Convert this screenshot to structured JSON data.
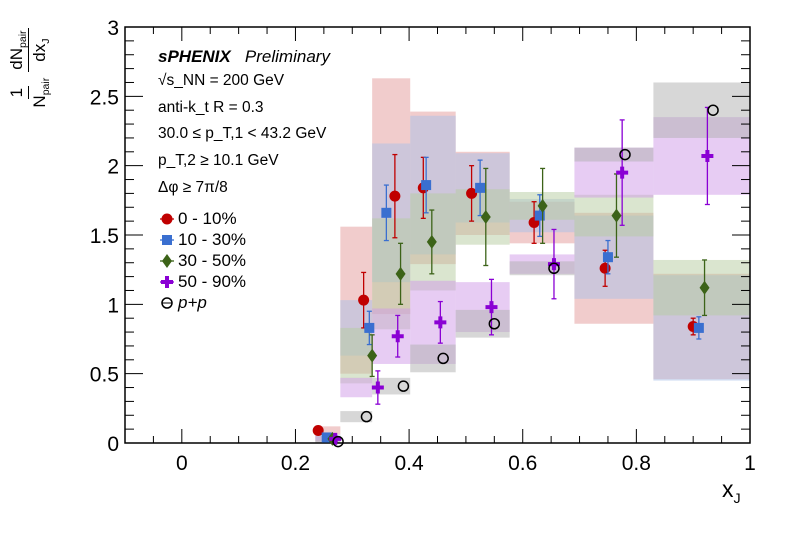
{
  "chart_data": {
    "type": "scatter",
    "title": "",
    "xlabel": "x_J",
    "ylabel": "1/N_pair dN_pair/dx_J",
    "xlim": [
      -0.1,
      1.0
    ],
    "ylim": [
      0,
      3
    ],
    "xticks": [
      "0",
      "0.2",
      "0.4",
      "0.6",
      "0.8",
      "1"
    ],
    "yticks": [
      "0",
      "0.5",
      "1",
      "1.5",
      "2",
      "2.5",
      "3"
    ],
    "grid": false,
    "legend_placement": "top-left",
    "bin_edges": [
      0.235,
      0.279,
      0.335,
      0.402,
      0.482,
      0.577,
      0.691,
      0.83,
      1.0
    ],
    "annotations": {
      "experiment": "sPHENIX",
      "status": "Preliminary",
      "energy": "√s_NN = 200 GeV",
      "jet": "anti-k_t  R = 0.3",
      "pt1": "30.0 ≤ p_T,1 < 43.2 GeV",
      "pt2": "p_T,2 ≥ 10.1 GeV",
      "dphi": "Δφ ≥ 7π/8"
    },
    "series": [
      {
        "name": "0 - 10%",
        "marker": "circle",
        "color": "#c00000",
        "box_color": "#e39a9a",
        "x": [
          0.24,
          0.32,
          0.375,
          0.425,
          0.51,
          0.62,
          0.745,
          0.9
        ],
        "y": [
          0.09,
          1.03,
          1.78,
          1.84,
          1.8,
          1.59,
          1.26,
          0.84
        ],
        "stat": [
          0.03,
          0.2,
          0.3,
          0.22,
          0.2,
          0.15,
          0.13,
          0.06
        ],
        "sys": [
          0.03,
          0.53,
          0.85,
          0.55,
          0.3,
          0.15,
          0.4,
          0.38
        ]
      },
      {
        "name": "10 - 30%",
        "marker": "square",
        "color": "#3a6fd0",
        "box_color": "#a9bfe8",
        "x": [
          0.255,
          0.33,
          0.36,
          0.43,
          0.525,
          0.63,
          0.75,
          0.91
        ],
        "y": [
          0.04,
          0.83,
          1.66,
          1.86,
          1.84,
          1.64,
          1.34,
          0.83
        ],
        "stat": [
          0.02,
          0.12,
          0.2,
          0.2,
          0.2,
          0.15,
          0.12,
          0.08
        ],
        "sys": [
          0.02,
          0.2,
          0.5,
          0.5,
          0.25,
          0.12,
          0.3,
          0.38
        ]
      },
      {
        "name": "30 - 50%",
        "marker": "diamond",
        "color": "#3c6318",
        "box_color": "#b6cba0",
        "x": [
          0.265,
          0.335,
          0.385,
          0.44,
          0.535,
          0.635,
          0.765,
          0.92
        ],
        "y": [
          0.03,
          0.63,
          1.22,
          1.45,
          1.63,
          1.71,
          1.64,
          1.12
        ],
        "stat": [
          0.02,
          0.15,
          0.22,
          0.23,
          0.35,
          0.27,
          0.3,
          0.2
        ],
        "sys": [
          0.02,
          0.2,
          0.4,
          0.35,
          0.2,
          0.1,
          0.15,
          0.2
        ]
      },
      {
        "name": "50 - 90%",
        "marker": "cross",
        "color": "#8a00d4",
        "box_color": "#cf9ae8",
        "x": [
          0.27,
          0.345,
          0.38,
          0.455,
          0.545,
          0.655,
          0.775,
          0.925
        ],
        "y": [
          0.03,
          0.4,
          0.77,
          0.87,
          0.98,
          1.29,
          1.95,
          2.07
        ],
        "stat": [
          0.02,
          0.12,
          0.15,
          0.15,
          0.2,
          0.25,
          0.38,
          0.35
        ],
        "sys": [
          0.02,
          0.07,
          0.2,
          0.3,
          0.18,
          0.07,
          0.18,
          0.28
        ]
      },
      {
        "name": "p+p",
        "marker": "open-circle",
        "color": "#000000",
        "box_color": "#b0b0b0",
        "x": [
          0.275,
          0.325,
          0.39,
          0.46,
          0.55,
          0.655,
          0.78,
          0.935
        ],
        "y": [
          0.01,
          0.19,
          0.41,
          0.61,
          0.86,
          1.26,
          2.08,
          2.4
        ],
        "stat": [
          0,
          0,
          0,
          0,
          0,
          0,
          0,
          0
        ],
        "sys": [
          0.01,
          0.04,
          0.06,
          0.1,
          0.1,
          0.05,
          0.05,
          0.2
        ]
      }
    ]
  }
}
